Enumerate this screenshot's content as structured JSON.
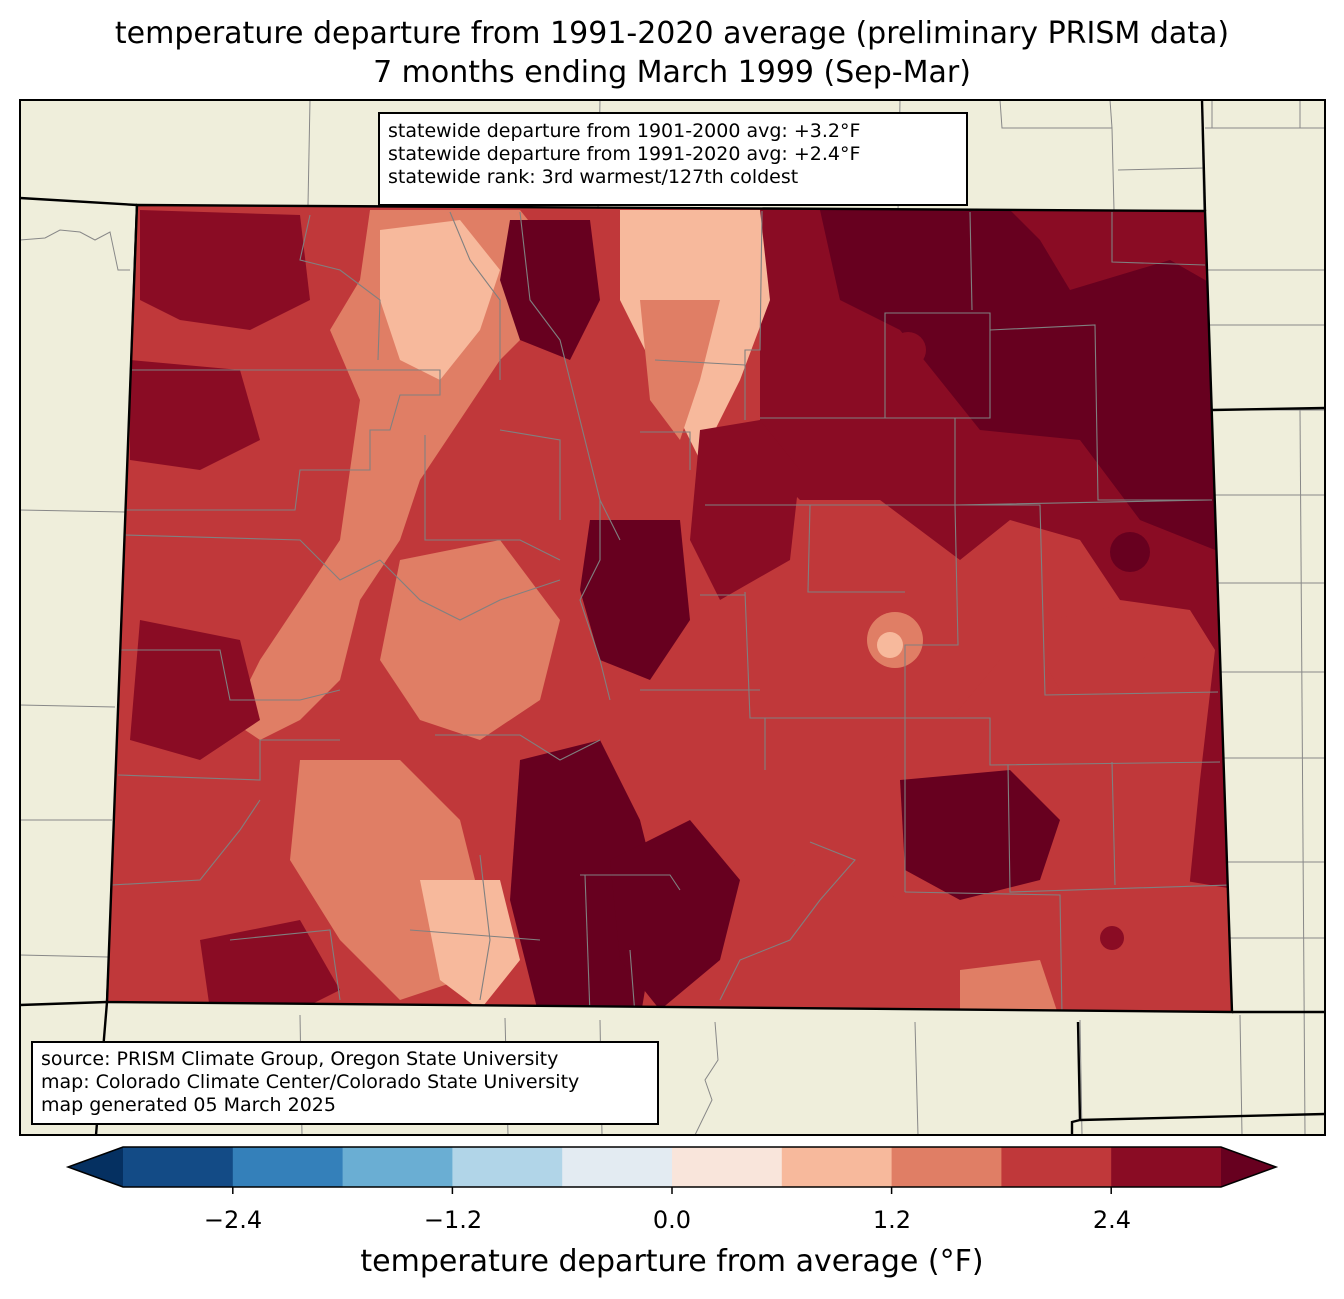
{
  "title": {
    "line1": "temperature departure from 1991-2020 average (preliminary PRISM data)",
    "line2": "7 months ending March 1999 (Sep-Mar)"
  },
  "stats": {
    "line1": "statewide departure from 1901-2000 avg: +3.2°F",
    "line2": "statewide departure from 1991-2020 avg: +2.4°F",
    "line3": "statewide rank: 3rd warmest/127th coldest"
  },
  "source": {
    "line1": "source: PRISM Climate Group, Oregon State University",
    "line2": "map: Colorado Climate Center/Colorado State University",
    "line3": "map generated 05 March 2025"
  },
  "colorbar": {
    "label": "temperature departure from average (°F)",
    "ticks": [
      "−2.4",
      "−1.2",
      "0.0",
      "1.2",
      "2.4"
    ],
    "levels": [
      -3.0,
      -2.4,
      -1.8,
      -1.2,
      -0.6,
      0.0,
      0.6,
      1.2,
      1.8,
      2.4,
      3.0
    ],
    "colors": [
      "#134b86",
      "#3480ba",
      "#6aaed3",
      "#b1d5e8",
      "#e3ebf2",
      "#f9e5db",
      "#f7b99c",
      "#e07e65",
      "#c0383a",
      "#8a0c24"
    ],
    "under_color": "#053061",
    "over_color": "#67001f"
  },
  "map": {
    "region": "Colorado",
    "land_color": "#efeedb",
    "dominant_departure_range": "1.8 to above 3.0 °F"
  }
}
